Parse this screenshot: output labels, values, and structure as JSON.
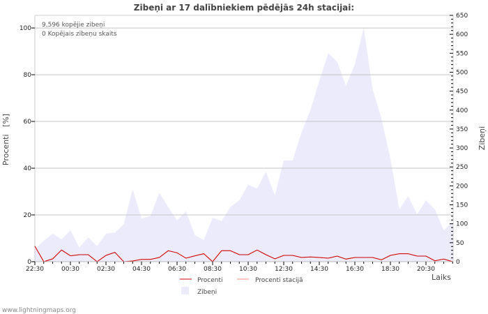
{
  "chart_data": {
    "type": "area",
    "title": "Zibeņi ar 17 dalībniekiem pēdējās 24h stacijai:",
    "annotations": [
      "9,596 kopējie zibeņi",
      "0 Kopējais zibeņu skaits"
    ],
    "xlabel": "Laiks",
    "ylabel_left": "Procenti   [%]",
    "ylabel_right": "Zibeņi",
    "x_tick_labels": [
      "22:30",
      "00:30",
      "02:30",
      "04:30",
      "06:30",
      "08:30",
      "10:30",
      "12:30",
      "14:30",
      "16:30",
      "18:30",
      "20:30"
    ],
    "y_left_ticks": [
      "0",
      "20",
      "40",
      "60",
      "80",
      "100"
    ],
    "y_right_ticks": [
      "0",
      "50",
      "100",
      "150",
      "200",
      "250",
      "300",
      "350",
      "400",
      "450",
      "500",
      "550",
      "600",
      "650"
    ],
    "ylim_left": [
      0,
      105.4
    ],
    "ylim_right": [
      0,
      650
    ],
    "interval_minutes": 30,
    "grid": true,
    "legend_position": "bottom",
    "series": [
      {
        "name": "Procenti",
        "color": "#cc0000",
        "axis": "left",
        "values": [
          6.6,
          0,
          1.2,
          5,
          2.5,
          3,
          3,
          0,
          2.7,
          4,
          0,
          0.3,
          1,
          1,
          1.8,
          4.7,
          3.8,
          1.5,
          2.5,
          3.4,
          0,
          4.7,
          4.7,
          3,
          3,
          5,
          3,
          1.2,
          2.7,
          2.7,
          1.8,
          2,
          1.8,
          1.5,
          2.4,
          1.1,
          1.8,
          1.8,
          1.8,
          0.8,
          2.7,
          3.4,
          3.4,
          2.4,
          2.4,
          0.4,
          1.1,
          0
        ]
      },
      {
        "name": "Procenti stacijā",
        "color": "#ff8888",
        "axis": "left",
        "values": [
          6.6,
          0,
          1.2,
          5,
          2.5,
          3,
          3,
          0,
          2.7,
          4,
          0,
          0.3,
          1,
          1,
          1.8,
          4.7,
          3.8,
          1.5,
          2.5,
          3.4,
          0,
          4.7,
          4.7,
          3,
          3,
          5,
          3,
          1.2,
          2.7,
          2.7,
          1.8,
          2,
          1.8,
          1.5,
          2.4,
          1.1,
          1.8,
          1.8,
          1.8,
          0.8,
          2.7,
          3.4,
          3.4,
          2.4,
          2.4,
          0.4,
          1.1,
          0
        ]
      },
      {
        "name": "Zibeņi",
        "color": "#ebebfc",
        "axis": "right",
        "values": [
          33,
          55,
          74,
          59,
          83,
          37,
          64,
          41,
          74,
          77,
          99,
          191,
          114,
          120,
          182,
          144,
          109,
          133,
          70,
          57,
          116,
          107,
          144,
          162,
          203,
          193,
          237,
          175,
          267,
          267,
          341,
          400,
          477,
          550,
          528,
          464,
          521,
          617,
          455,
          377,
          272,
          138,
          173,
          125,
          162,
          138,
          83,
          105
        ]
      }
    ]
  },
  "footer": "www.lightningmaps.org"
}
